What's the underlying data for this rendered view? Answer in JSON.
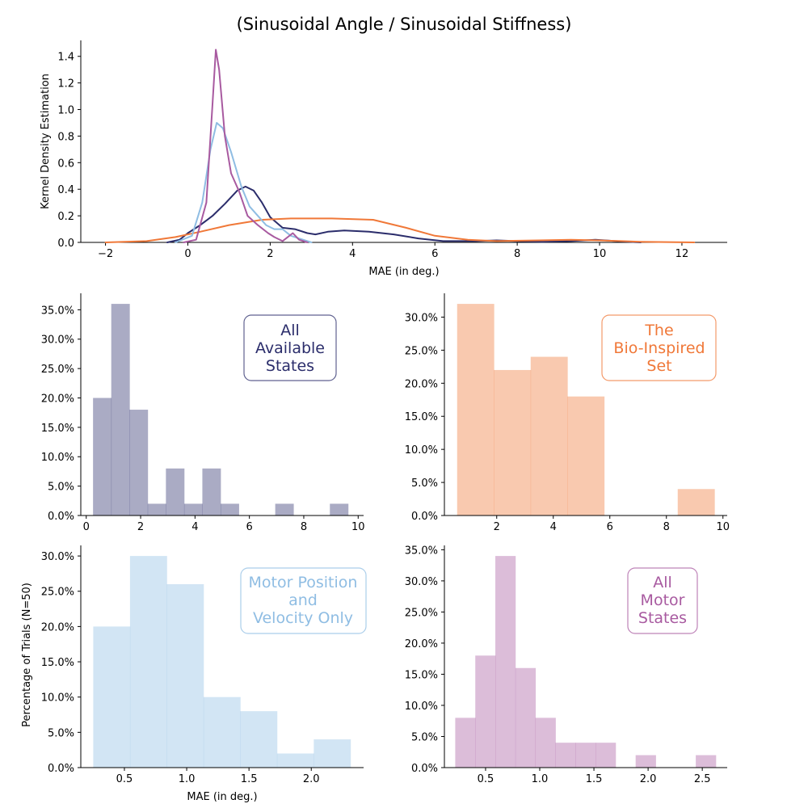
{
  "title": "(Sinusoidal Angle / Sinusoidal Stiffness)",
  "colors": {
    "all_states": "#2b2d6b",
    "bio_inspired": "#f07838",
    "motor_pos_vel": "#8fbde3",
    "all_motor": "#a85aa0"
  },
  "chart_data": [
    {
      "type": "line",
      "name": "kde",
      "xlabel": "MAE (in deg.)",
      "ylabel": "Kernel Density Estimation",
      "xlim": [
        -2.6,
        13.1
      ],
      "ylim": [
        0,
        1.52
      ],
      "xticks": [
        -2,
        0,
        2,
        4,
        6,
        8,
        10,
        12
      ],
      "xtick_labels": [
        "−2",
        "0",
        "2",
        "4",
        "6",
        "8",
        "10",
        "12"
      ],
      "yticks": [
        0.0,
        0.2,
        0.4,
        0.6,
        0.8,
        1.0,
        1.2,
        1.4
      ],
      "ytick_labels": [
        "0.0",
        "0.2",
        "0.4",
        "0.6",
        "0.8",
        "1.0",
        "1.2",
        "1.4"
      ],
      "series": [
        {
          "color_key": "all_states",
          "points": [
            [
              -0.5,
              0.0
            ],
            [
              -0.2,
              0.02
            ],
            [
              0.0,
              0.07
            ],
            [
              0.3,
              0.13
            ],
            [
              0.6,
              0.2
            ],
            [
              0.9,
              0.29
            ],
            [
              1.2,
              0.39
            ],
            [
              1.4,
              0.42
            ],
            [
              1.6,
              0.39
            ],
            [
              1.8,
              0.3
            ],
            [
              2.0,
              0.19
            ],
            [
              2.3,
              0.11
            ],
            [
              2.6,
              0.1
            ],
            [
              2.9,
              0.07
            ],
            [
              3.1,
              0.06
            ],
            [
              3.4,
              0.08
            ],
            [
              3.8,
              0.09
            ],
            [
              4.4,
              0.08
            ],
            [
              5.0,
              0.06
            ],
            [
              5.6,
              0.03
            ],
            [
              6.2,
              0.01
            ],
            [
              7.0,
              0.01
            ],
            [
              7.5,
              0.015
            ],
            [
              8.0,
              0.01
            ],
            [
              8.6,
              0.005
            ],
            [
              9.3,
              0.01
            ],
            [
              9.9,
              0.02
            ],
            [
              10.4,
              0.01
            ],
            [
              11.0,
              0.0
            ]
          ]
        },
        {
          "color_key": "bio_inspired",
          "points": [
            [
              -2.0,
              0.0
            ],
            [
              -1.0,
              0.01
            ],
            [
              -0.3,
              0.04
            ],
            [
              0.3,
              0.08
            ],
            [
              1.0,
              0.13
            ],
            [
              1.8,
              0.17
            ],
            [
              2.5,
              0.18
            ],
            [
              3.5,
              0.18
            ],
            [
              4.5,
              0.17
            ],
            [
              5.3,
              0.11
            ],
            [
              6.0,
              0.05
            ],
            [
              6.8,
              0.02
            ],
            [
              7.5,
              0.01
            ],
            [
              8.5,
              0.015
            ],
            [
              9.3,
              0.02
            ],
            [
              10.0,
              0.015
            ],
            [
              11.0,
              0.005
            ],
            [
              12.3,
              0.0
            ]
          ]
        },
        {
          "color_key": "motor_pos_vel",
          "points": [
            [
              -0.3,
              0.0
            ],
            [
              0.1,
              0.05
            ],
            [
              0.35,
              0.3
            ],
            [
              0.55,
              0.7
            ],
            [
              0.7,
              0.9
            ],
            [
              0.85,
              0.86
            ],
            [
              1.05,
              0.68
            ],
            [
              1.3,
              0.42
            ],
            [
              1.5,
              0.27
            ],
            [
              1.7,
              0.2
            ],
            [
              1.9,
              0.13
            ],
            [
              2.1,
              0.1
            ],
            [
              2.3,
              0.1
            ],
            [
              2.5,
              0.05
            ],
            [
              2.8,
              0.02
            ],
            [
              3.0,
              0.0
            ]
          ]
        },
        {
          "color_key": "all_motor",
          "points": [
            [
              -0.1,
              0.0
            ],
            [
              0.2,
              0.02
            ],
            [
              0.45,
              0.3
            ],
            [
              0.6,
              1.05
            ],
            [
              0.68,
              1.45
            ],
            [
              0.76,
              1.3
            ],
            [
              0.9,
              0.8
            ],
            [
              1.05,
              0.52
            ],
            [
              1.25,
              0.38
            ],
            [
              1.45,
              0.2
            ],
            [
              1.7,
              0.13
            ],
            [
              1.95,
              0.07
            ],
            [
              2.1,
              0.04
            ],
            [
              2.3,
              0.01
            ],
            [
              2.55,
              0.07
            ],
            [
              2.7,
              0.02
            ],
            [
              2.9,
              0.0
            ]
          ]
        }
      ]
    },
    {
      "type": "bar",
      "name": "hist_all_states",
      "color_key": "all_states",
      "legend": [
        "All",
        "Available",
        "States"
      ],
      "bin_edges": [
        0.25,
        0.92,
        1.59,
        2.26,
        2.93,
        3.6,
        4.27,
        4.94,
        5.61,
        6.28,
        6.95,
        7.62,
        8.29,
        8.96,
        9.63
      ],
      "values": [
        20,
        36,
        18,
        2,
        8,
        2,
        8,
        2,
        0,
        0,
        2,
        0,
        0,
        2
      ],
      "xlim": [
        -0.2,
        10.2
      ],
      "ylim": [
        0,
        37.8
      ],
      "xticks": [
        0,
        2,
        4,
        6,
        8,
        10
      ],
      "xtick_labels": [
        "0",
        "2",
        "4",
        "6",
        "8",
        "10"
      ],
      "yticks": [
        0,
        5,
        10,
        15,
        20,
        25,
        30,
        35
      ],
      "ytick_labels": [
        "0.0%",
        "5.0%",
        "10.0%",
        "15.0%",
        "20.0%",
        "25.0%",
        "30.0%",
        "35.0%"
      ]
    },
    {
      "type": "bar",
      "name": "hist_bio_inspired",
      "color_key": "bio_inspired",
      "legend": [
        "The",
        "Bio-Inspired",
        "Set"
      ],
      "bin_edges": [
        0.6,
        1.9,
        3.2,
        4.5,
        5.8,
        7.1,
        8.4,
        9.7
      ],
      "values": [
        32,
        22,
        24,
        18,
        0,
        0,
        4
      ],
      "xlim": [
        0.15,
        10.15
      ],
      "ylim": [
        0,
        33.6
      ],
      "xticks": [
        2,
        4,
        6,
        8,
        10
      ],
      "xtick_labels": [
        "2",
        "4",
        "6",
        "8",
        "10"
      ],
      "yticks": [
        0,
        5,
        10,
        15,
        20,
        25,
        30
      ],
      "ytick_labels": [
        "0.0%",
        "5.0%",
        "10.0%",
        "15.0%",
        "20.0%",
        "25.0%",
        "30.0%"
      ]
    },
    {
      "type": "bar",
      "name": "hist_motor_pos_vel",
      "color_key": "motor_pos_vel",
      "legend": [
        "Motor Position",
        "and",
        "Velocity Only"
      ],
      "xlabel": "MAE (in deg.)",
      "ylabel": "Percentage of Trials (N=50)",
      "bin_edges": [
        0.25,
        0.545,
        0.84,
        1.135,
        1.43,
        1.725,
        2.02,
        2.315
      ],
      "values": [
        20,
        30,
        26,
        10,
        8,
        2,
        4
      ],
      "xlim": [
        0.15,
        2.42
      ],
      "ylim": [
        0,
        31.5
      ],
      "xticks": [
        0.5,
        1.0,
        1.5,
        2.0
      ],
      "xtick_labels": [
        "0.5",
        "1.0",
        "1.5",
        "2.0"
      ],
      "yticks": [
        0,
        5,
        10,
        15,
        20,
        25,
        30
      ],
      "ytick_labels": [
        "0.0%",
        "5.0%",
        "10.0%",
        "15.0%",
        "20.0%",
        "25.0%",
        "30.0%"
      ]
    },
    {
      "type": "bar",
      "name": "hist_all_motor",
      "color_key": "all_motor",
      "legend": [
        "All",
        "Motor",
        "States"
      ],
      "bin_edges": [
        0.22,
        0.405,
        0.59,
        0.775,
        0.96,
        1.145,
        1.33,
        1.515,
        1.7,
        1.885,
        2.07,
        2.255,
        2.44,
        2.625
      ],
      "values": [
        8,
        18,
        34,
        16,
        8,
        4,
        4,
        4,
        0,
        2,
        0,
        0,
        2
      ],
      "xlim": [
        0.12,
        2.73
      ],
      "ylim": [
        0,
        35.7
      ],
      "xticks": [
        0.5,
        1.0,
        1.5,
        2.0,
        2.5
      ],
      "xtick_labels": [
        "0.5",
        "1.0",
        "1.5",
        "2.0",
        "2.5"
      ],
      "yticks": [
        0,
        5,
        10,
        15,
        20,
        25,
        30,
        35
      ],
      "ytick_labels": [
        "0.0%",
        "5.0%",
        "10.0%",
        "15.0%",
        "20.0%",
        "25.0%",
        "30.0%",
        "35.0%"
      ]
    }
  ]
}
